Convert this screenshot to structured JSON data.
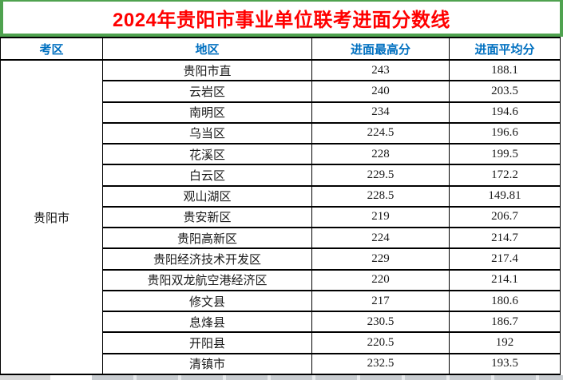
{
  "title": "2024年贵阳市事业单位联考进面分数线",
  "table": {
    "col_headers": [
      "考区",
      "地区",
      "进面最高分",
      "进面平均分"
    ],
    "exam_area": "贵阳市",
    "rows": [
      {
        "region": "贵阳市直",
        "max_score": "243",
        "avg_score": "188.1"
      },
      {
        "region": "云岩区",
        "max_score": "240",
        "avg_score": "203.5"
      },
      {
        "region": "南明区",
        "max_score": "234",
        "avg_score": "194.6"
      },
      {
        "region": "乌当区",
        "max_score": "224.5",
        "avg_score": "196.6"
      },
      {
        "region": "花溪区",
        "max_score": "228",
        "avg_score": "199.5"
      },
      {
        "region": "白云区",
        "max_score": "229.5",
        "avg_score": "172.2"
      },
      {
        "region": "观山湖区",
        "max_score": "228.5",
        "avg_score": "149.81"
      },
      {
        "region": "贵安新区",
        "max_score": "219",
        "avg_score": "206.7"
      },
      {
        "region": "贵阳高新区",
        "max_score": "224",
        "avg_score": "214.7"
      },
      {
        "region": "贵阳经济技术开发区",
        "max_score": "229",
        "avg_score": "217.4"
      },
      {
        "region": "贵阳双龙航空港经济区",
        "max_score": "220",
        "avg_score": "214.1"
      },
      {
        "region": "修文县",
        "max_score": "217",
        "avg_score": "180.6"
      },
      {
        "region": "息烽县",
        "max_score": "230.5",
        "avg_score": "186.7"
      },
      {
        "region": "开阳县",
        "max_score": "220.5",
        "avg_score": "192"
      },
      {
        "region": "清镇市",
        "max_score": "232.5",
        "avg_score": "193.5"
      }
    ]
  },
  "colors": {
    "title_red": "#ff0000",
    "header_blue": "#0070c0",
    "frame_green": "#4fa24f",
    "table_border": "#000000",
    "bottom_edge_gray": "#c9cdd1"
  }
}
